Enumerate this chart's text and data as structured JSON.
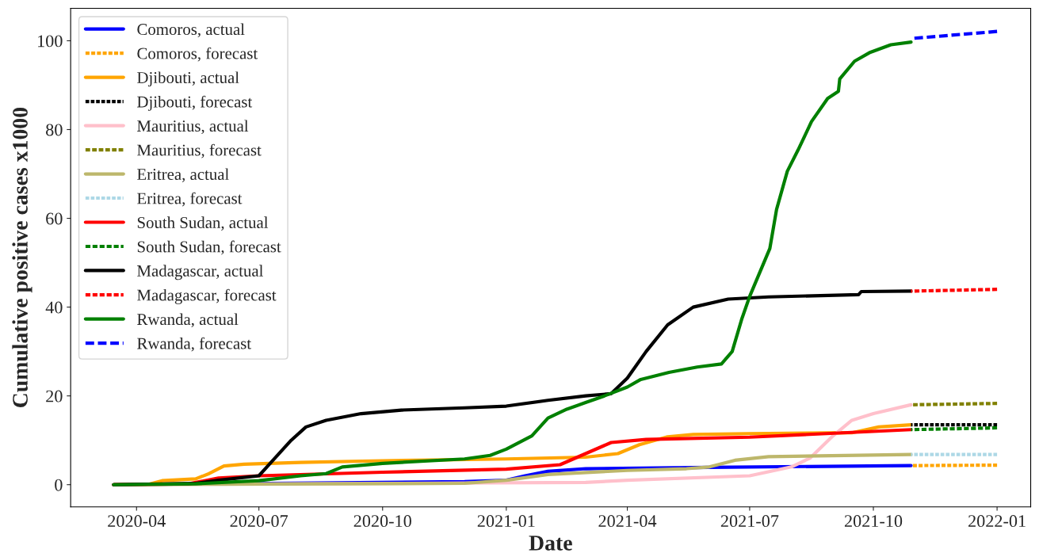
{
  "chart_data": {
    "type": "line",
    "xlabel": "Date",
    "ylabel": "Cumulative positive cases x1000",
    "xlim": [
      "2020-02-12",
      "2022-01-26"
    ],
    "ylim": [
      -5,
      107.3
    ],
    "xticks": [
      "2020-04",
      "2020-07",
      "2020-10",
      "2021-01",
      "2021-04",
      "2021-07",
      "2021-10",
      "2022-01"
    ],
    "yticks": [
      0,
      20,
      40,
      60,
      80,
      100
    ],
    "grid": false,
    "legend": "top left",
    "series": [
      {
        "name": "Comoros, actual",
        "color": "#0000ff",
        "line_style": "solid",
        "x": [
          "2020-03-15",
          "2020-12-01",
          "2021-01-01",
          "2021-01-15",
          "2021-02-01",
          "2021-03-01",
          "2021-06-01",
          "2021-10-29"
        ],
        "values": [
          0,
          0.7,
          1,
          2,
          3,
          3.6,
          3.9,
          4.3
        ]
      },
      {
        "name": "Comoros, forecast",
        "color": "#ffa500",
        "line_style": "dashed",
        "x": [
          "2021-10-29",
          "2022-01-01"
        ],
        "values": [
          4.3,
          4.4
        ]
      },
      {
        "name": "Djibouti, actual",
        "color": "#ffa500",
        "line_style": "solid",
        "x": [
          "2020-03-15",
          "2020-04-10",
          "2020-04-20",
          "2020-05-15",
          "2020-05-25",
          "2020-06-05",
          "2020-06-20",
          "2020-08-01",
          "2020-10-01",
          "2021-01-01",
          "2021-03-01",
          "2021-03-25",
          "2021-04-10",
          "2021-05-01",
          "2021-05-20",
          "2021-07-01",
          "2021-09-15",
          "2021-10-05",
          "2021-10-29"
        ],
        "values": [
          0,
          0.1,
          0.9,
          1.3,
          2.5,
          4.2,
          4.6,
          5,
          5.4,
          5.8,
          6.2,
          7,
          9,
          10.8,
          11.3,
          11.5,
          11.7,
          13,
          13.5
        ]
      },
      {
        "name": "Djibouti, forecast",
        "color": "#000000",
        "line_style": "dashed",
        "x": [
          "2021-10-29",
          "2022-01-01"
        ],
        "values": [
          13.5,
          13.5
        ]
      },
      {
        "name": "Mauritius, actual",
        "color": "#ffc0cb",
        "line_style": "solid",
        "x": [
          "2020-03-15",
          "2021-03-01",
          "2021-04-01",
          "2021-07-01",
          "2021-08-01",
          "2021-08-15",
          "2021-09-01",
          "2021-09-15",
          "2021-10-01",
          "2021-10-29"
        ],
        "values": [
          0,
          0.5,
          1,
          2,
          4,
          6,
          11,
          14.5,
          16,
          18
        ]
      },
      {
        "name": "Mauritius, forecast",
        "color": "#808000",
        "line_style": "dashed",
        "x": [
          "2021-10-29",
          "2022-01-01"
        ],
        "values": [
          18,
          18.3
        ]
      },
      {
        "name": "Eritrea, actual",
        "color": "#bdb76b",
        "line_style": "solid",
        "x": [
          "2020-03-15",
          "2020-06-01",
          "2020-12-01",
          "2021-01-01",
          "2021-02-01",
          "2021-04-01",
          "2021-05-15",
          "2021-06-01",
          "2021-06-20",
          "2021-07-15",
          "2021-10-29"
        ],
        "values": [
          0,
          0.1,
          0.3,
          1,
          2.3,
          3.2,
          3.6,
          4,
          5.5,
          6.3,
          6.8
        ]
      },
      {
        "name": "Eritrea, forecast",
        "color": "#add8e6",
        "line_style": "dashed",
        "x": [
          "2021-10-29",
          "2022-01-01"
        ],
        "values": [
          6.8,
          6.8
        ]
      },
      {
        "name": "South Sudan, actual",
        "color": "#ff0000",
        "line_style": "solid",
        "x": [
          "2020-03-15",
          "2020-05-10",
          "2020-06-01",
          "2020-07-01",
          "2020-10-01",
          "2021-01-01",
          "2021-02-10",
          "2021-03-01",
          "2021-03-20",
          "2021-04-15",
          "2021-07-01",
          "2021-10-29"
        ],
        "values": [
          0,
          0.2,
          1.5,
          2,
          2.8,
          3.5,
          4.5,
          7,
          9.5,
          10.2,
          10.7,
          12.4
        ]
      },
      {
        "name": "South Sudan, forecast",
        "color": "#008000",
        "line_style": "dashed",
        "x": [
          "2021-10-29",
          "2022-01-01"
        ],
        "values": [
          12.4,
          12.8
        ]
      },
      {
        "name": "Madagascar, actual",
        "color": "#000000",
        "line_style": "solid",
        "x": [
          "2020-03-15",
          "2020-05-15",
          "2020-06-01",
          "2020-07-01",
          "2020-07-10",
          "2020-07-25",
          "2020-08-05",
          "2020-08-20",
          "2020-09-15",
          "2020-10-15",
          "2020-12-01",
          "2021-01-01",
          "2021-02-01",
          "2021-03-01",
          "2021-03-20",
          "2021-04-01",
          "2021-04-15",
          "2021-05-01",
          "2021-05-20",
          "2021-06-15",
          "2021-07-15",
          "2021-09-20",
          "2021-09-22",
          "2021-10-29"
        ],
        "values": [
          0,
          0.3,
          1,
          2,
          5,
          10,
          13,
          14.5,
          16,
          16.8,
          17.3,
          17.7,
          19,
          20,
          20.5,
          24,
          30,
          36,
          40,
          41.8,
          42.3,
          42.8,
          43.5,
          43.6
        ]
      },
      {
        "name": "Madagascar, forecast",
        "color": "#ff0000",
        "line_style": "dashed",
        "x": [
          "2021-10-29",
          "2022-01-01"
        ],
        "values": [
          43.6,
          44.0
        ]
      },
      {
        "name": "Rwanda, actual",
        "color": "#008000",
        "line_style": "solid",
        "x": [
          "2020-03-15",
          "2020-05-15",
          "2020-07-01",
          "2020-08-01",
          "2020-08-20",
          "2020-09-01",
          "2020-10-01",
          "2020-12-01",
          "2020-12-20",
          "2021-01-01",
          "2021-01-20",
          "2021-02-01",
          "2021-02-15",
          "2021-03-01",
          "2021-03-15",
          "2021-04-01",
          "2021-04-11",
          "2021-05-02",
          "2021-05-23",
          "2021-06-10",
          "2021-06-18",
          "2021-06-25",
          "2021-07-01",
          "2021-07-16",
          "2021-07-21",
          "2021-07-29",
          "2021-08-06",
          "2021-08-16",
          "2021-08-28",
          "2021-09-05",
          "2021-09-06",
          "2021-09-17",
          "2021-09-28",
          "2021-10-14",
          "2021-10-29"
        ],
        "values": [
          0,
          0.2,
          0.9,
          2,
          2.5,
          4,
          4.8,
          5.8,
          6.6,
          8,
          11,
          15,
          17,
          18.5,
          20,
          22,
          23.7,
          25.3,
          26.5,
          27.2,
          30,
          37.2,
          42.4,
          53.2,
          62,
          70.6,
          75.4,
          81.8,
          87,
          88.6,
          91.4,
          95.4,
          97.3,
          99.1,
          99.7
        ]
      },
      {
        "name": "Rwanda, forecast",
        "color": "#0000ff",
        "line_style": "dashed",
        "x": [
          "2021-10-29",
          "2022-01-01"
        ],
        "values": [
          100.5,
          102.1
        ]
      }
    ]
  }
}
